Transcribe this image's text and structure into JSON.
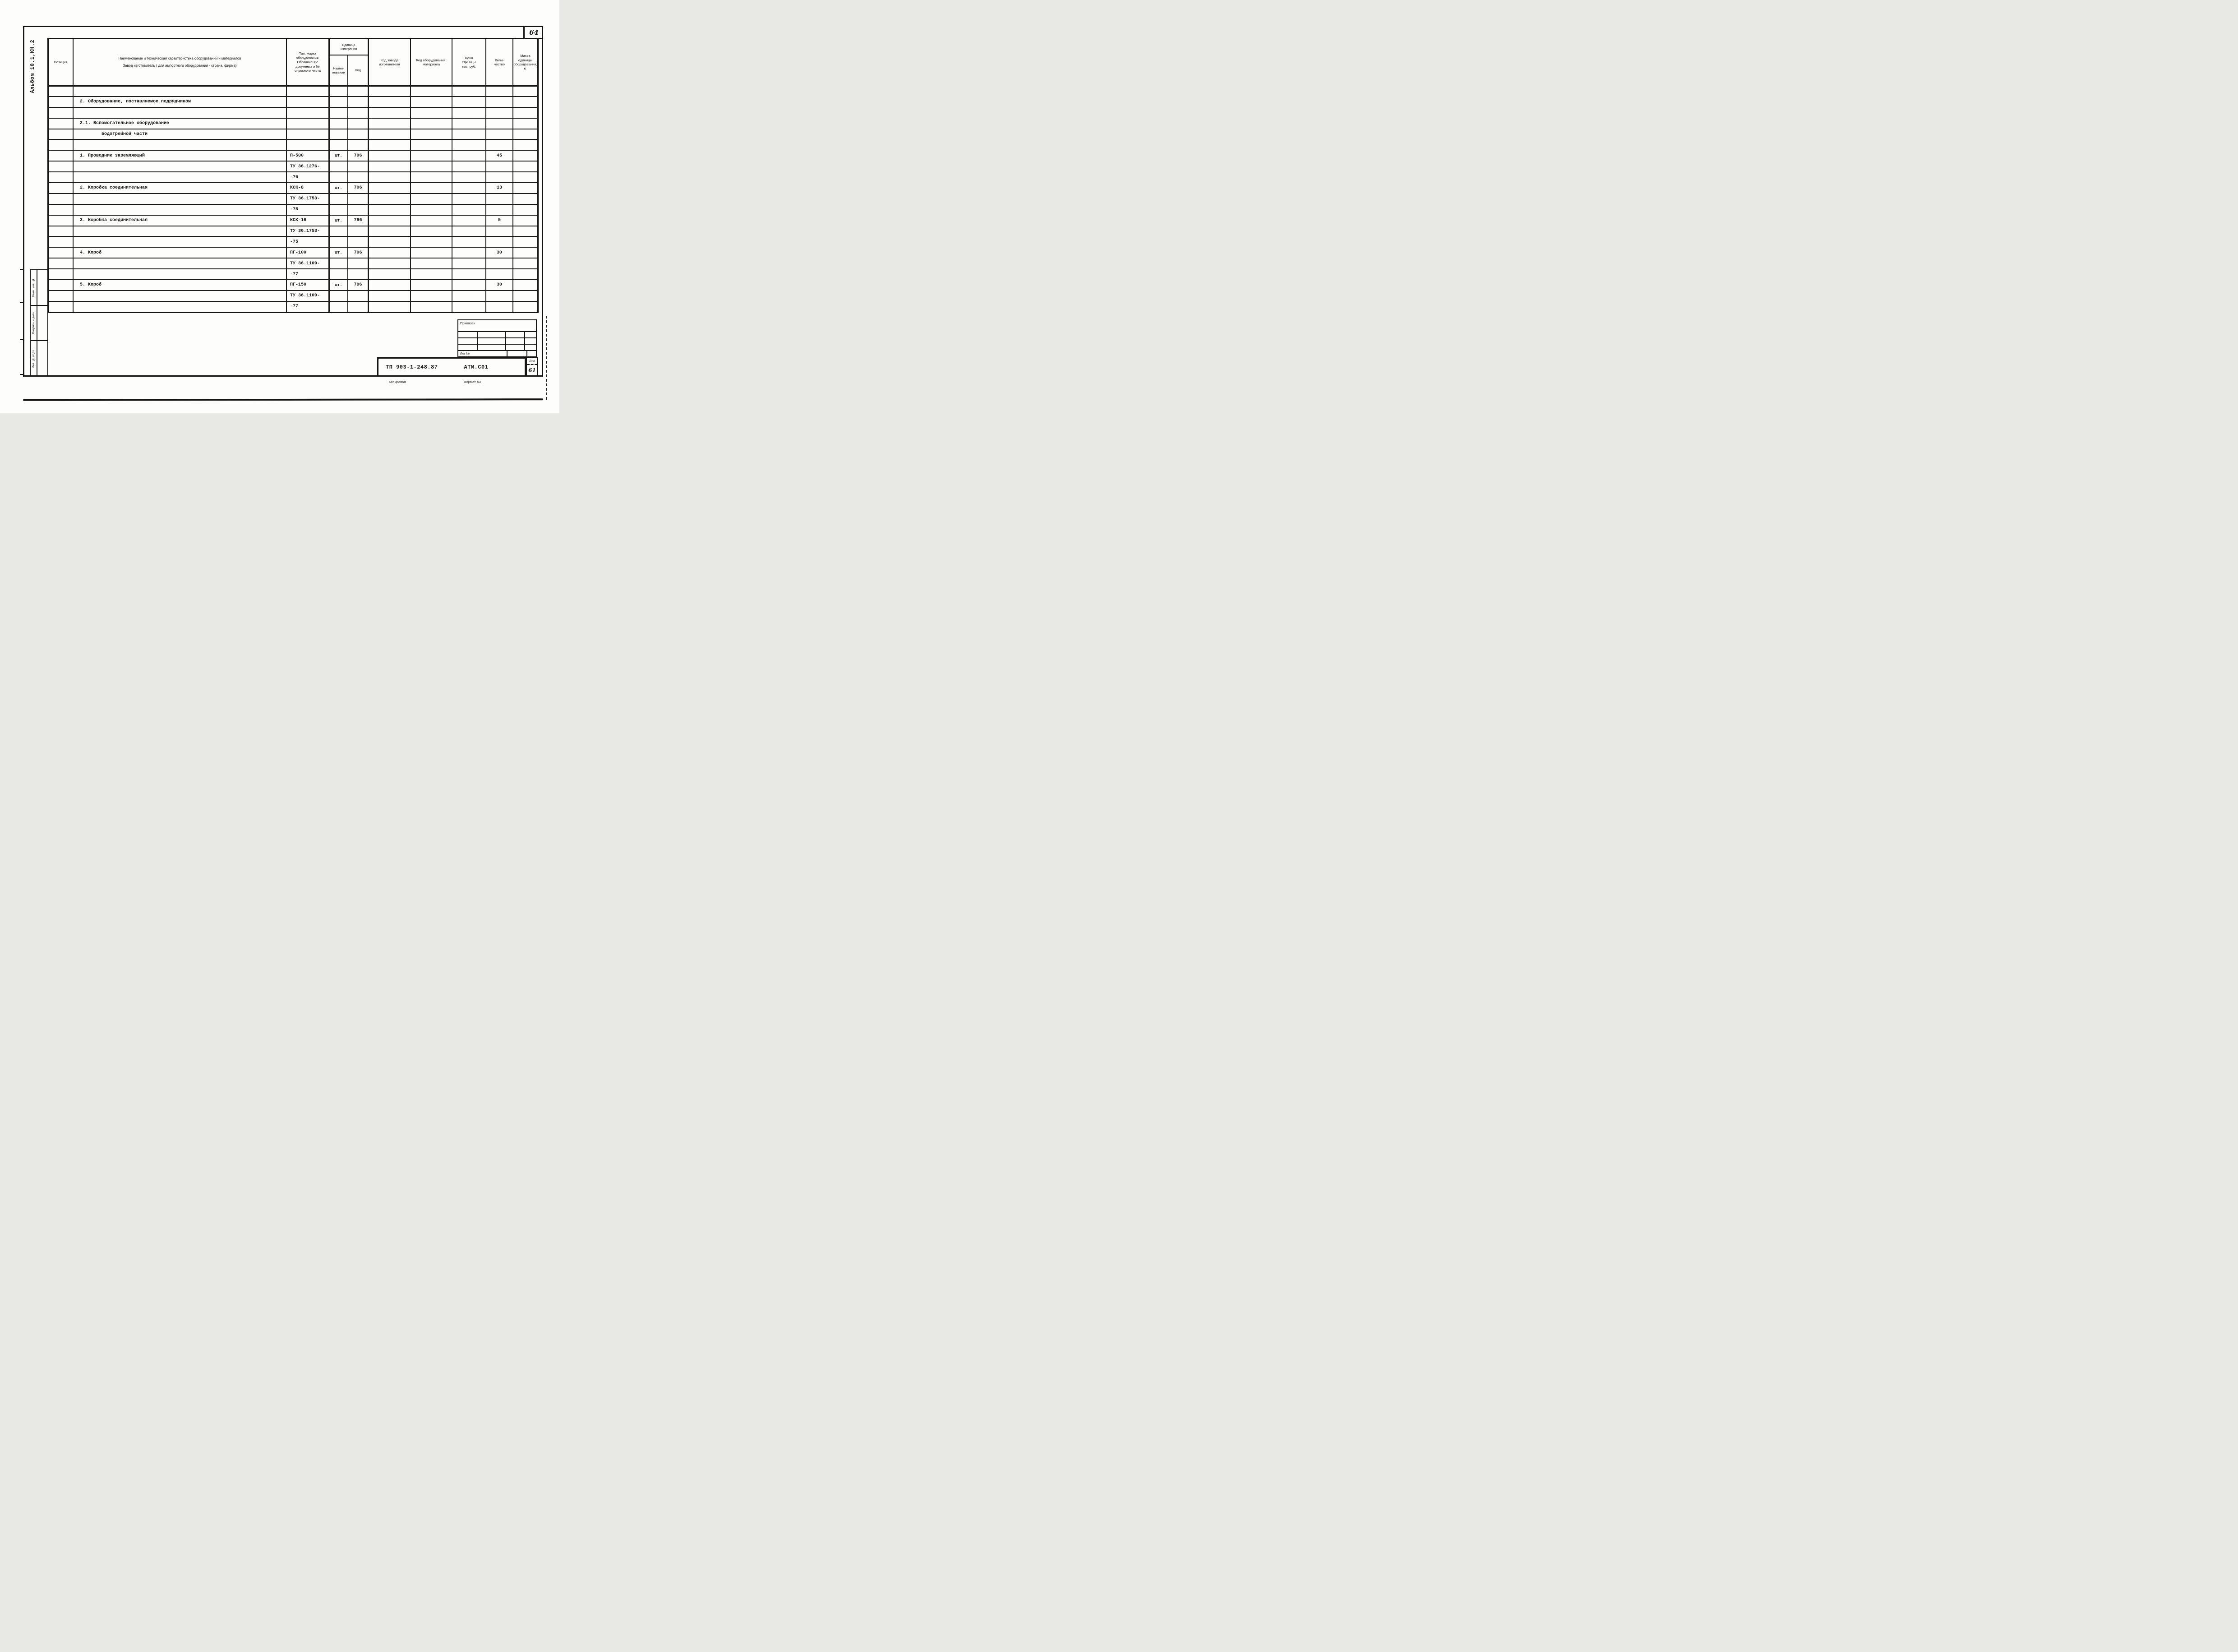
{
  "page_number": "64",
  "album_label": "Альбом 10.1,КН.2",
  "colors": {
    "ink": "#171513",
    "paper": "#fdfdfb"
  },
  "table": {
    "headers": {
      "position": "Позиция",
      "name_line1": "Наименование и техническая характеристика оборудований и материалов",
      "name_line2": "Завод изготовитель ( для импортного оборудования - страна, фирма)",
      "type": "Тип, марка\nоборудования.\nОбозначение\nдокумента и №\nопросного листа",
      "unit_group": "Единица\nизмерения",
      "unit_name": "Наиме-\nнование",
      "unit_code": "Код",
      "factory_code": "Код завода\nизготовителя",
      "equipment_code": "Код оборудования,\nматериала",
      "price": "Цена\nединицы\nтыс. руб.",
      "quantity": "Коли-\nчество",
      "mass": "Масса\nединицы\nоборудования,\nкг"
    },
    "rows": [
      {
        "name": "",
        "type": "",
        "unit": "",
        "code": "",
        "qty": ""
      },
      {
        "name": "2. Оборудование, поставляемое подрядчиком",
        "type": "",
        "unit": "",
        "code": "",
        "qty": ""
      },
      {
        "name": "",
        "type": "",
        "unit": "",
        "code": "",
        "qty": ""
      },
      {
        "name": "2.1. Вспомогательное оборудование",
        "type": "",
        "unit": "",
        "code": "",
        "qty": ""
      },
      {
        "name": "водогрейной части",
        "indent": 2,
        "type": "",
        "unit": "",
        "code": "",
        "qty": ""
      },
      {
        "name": "",
        "type": "",
        "unit": "",
        "code": "",
        "qty": ""
      },
      {
        "name": "1. Проводник заземляющий",
        "type": "П-500",
        "unit": "шт.",
        "code": "796",
        "qty": "45"
      },
      {
        "name": "",
        "type": "ТУ 36.1276-",
        "unit": "",
        "code": "",
        "qty": ""
      },
      {
        "name": "",
        "type": "-76",
        "unit": "",
        "code": "",
        "qty": ""
      },
      {
        "name": "2. Коробка соединительная",
        "type": "КСК-8",
        "unit": "шт.",
        "code": "796",
        "qty": "13"
      },
      {
        "name": "",
        "type": "ТУ 36.1753-",
        "unit": "",
        "code": "",
        "qty": ""
      },
      {
        "name": "",
        "type": "-75",
        "unit": "",
        "code": "",
        "qty": ""
      },
      {
        "name": "3. Коробка соединительная",
        "type": "КСК-16",
        "unit": "шт.",
        "code": "796",
        "qty": "5"
      },
      {
        "name": "",
        "type": "ТУ 36.1753-",
        "unit": "",
        "code": "",
        "qty": ""
      },
      {
        "name": "",
        "type": "-75",
        "unit": "",
        "code": "",
        "qty": ""
      },
      {
        "name": "4. Короб",
        "type": "ПГ-100",
        "unit": "шт.",
        "code": "796",
        "qty": "30"
      },
      {
        "name": "",
        "type": "ТУ 36.1109-",
        "unit": "",
        "code": "",
        "qty": ""
      },
      {
        "name": "",
        "type": "-77",
        "unit": "",
        "code": "",
        "qty": ""
      },
      {
        "name": "5. Короб",
        "type": "ПГ-150",
        "unit": "шт.",
        "code": "796",
        "qty": "30"
      },
      {
        "name": "",
        "type": "ТУ 36.1109-",
        "unit": "",
        "code": "",
        "qty": ""
      },
      {
        "name": "",
        "type": "-77",
        "unit": "",
        "code": "",
        "qty": ""
      }
    ]
  },
  "side_stamps": {
    "stamp1": "Взам. инв. №",
    "stamp2": "Подпись и дата",
    "stamp3": "Инв. № подл."
  },
  "right_stamp": {
    "binding_label": "Привязан",
    "inv_label": "Инв №"
  },
  "title_block": {
    "project_code": "ТП 903-1-248.87",
    "doc_code": "АТМ.С01",
    "sheet_label": "Лист",
    "sheet_number": "61",
    "copied_label": "Копировал",
    "format_label": "Формат А3"
  }
}
